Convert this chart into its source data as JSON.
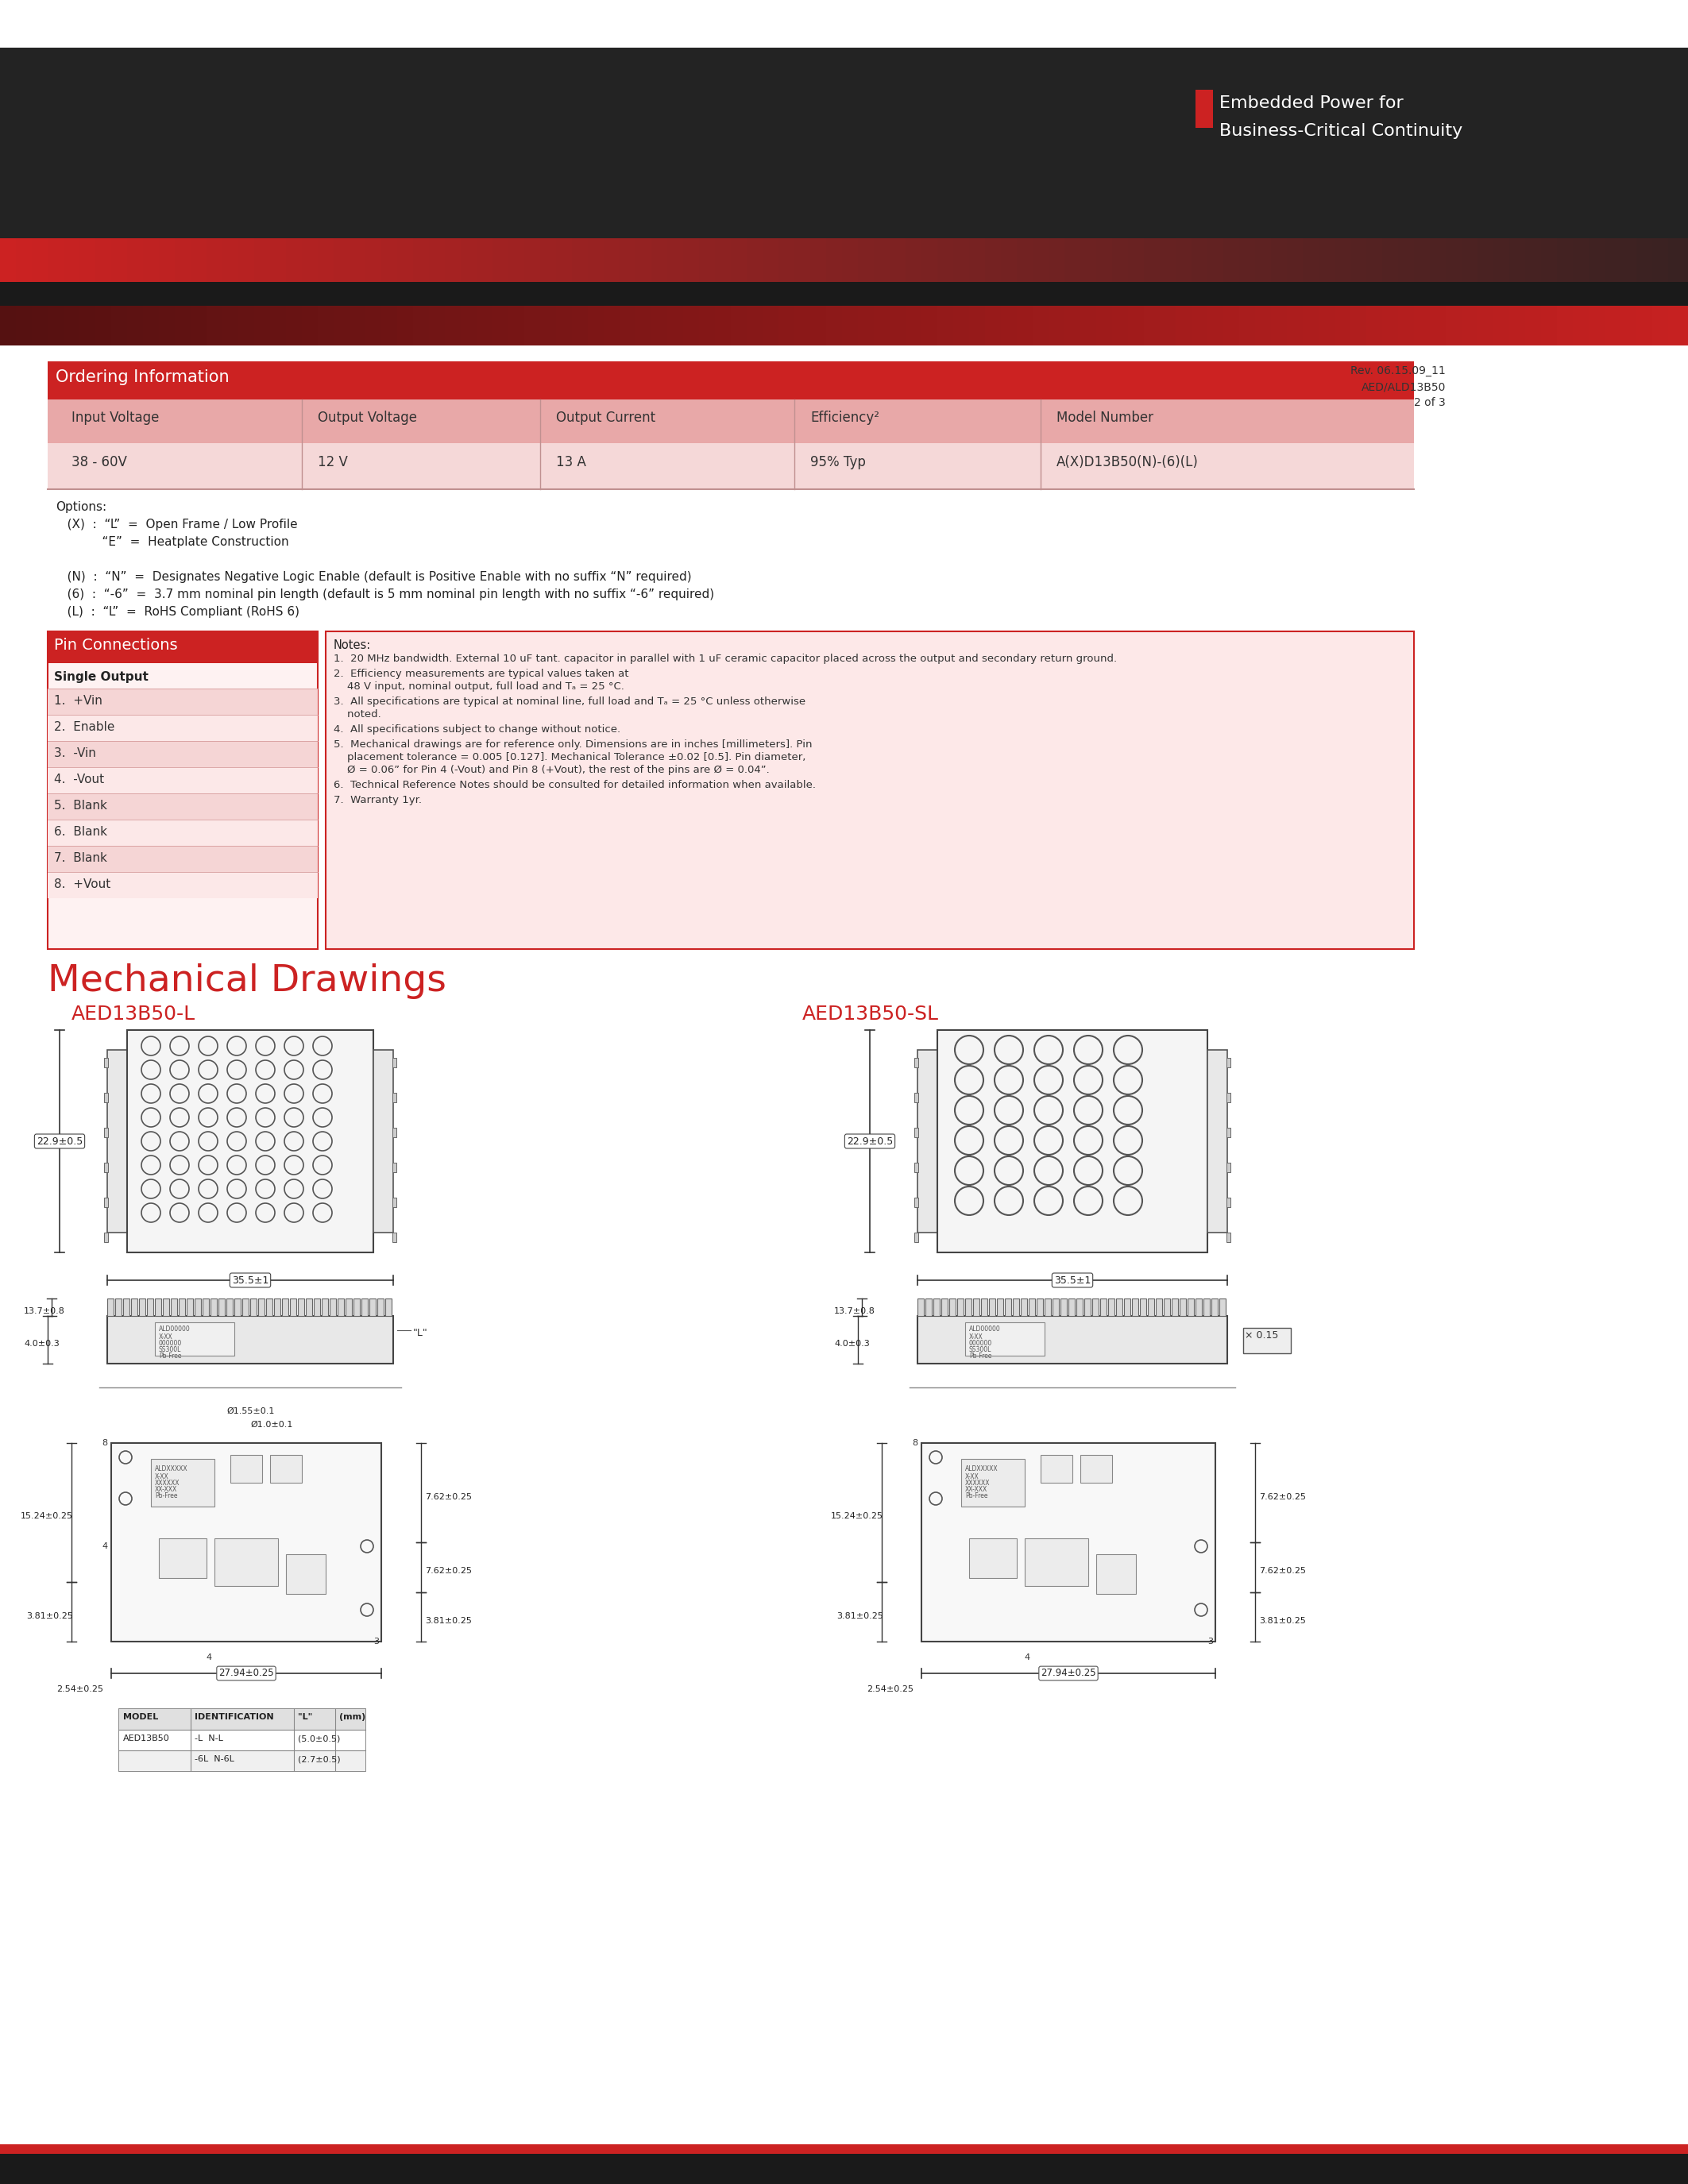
{
  "page_width": 21.25,
  "page_height": 27.5,
  "bg_color": "#ffffff",
  "header_dark": "#222222",
  "header_red": "#cc2222",
  "brand_text_line1": "Embedded Power for",
  "brand_text_line2": "Business-Critical Continuity",
  "rev_line1": "Rev. 06.15.09_11",
  "rev_line2": "AED/ALD13B50",
  "rev_line3": "2 of 3",
  "ordering_header": "Ordering Information",
  "ordering_cols": [
    "Input Voltage",
    "Output Voltage",
    "Output Current",
    "Efficiency²",
    "Model Number"
  ],
  "ordering_vals": [
    "38 - 60V",
    "12 V",
    "13 A",
    "95% Typ",
    "A(X)D13B50(N)-(6)(L)"
  ],
  "pin_header": "Pin Connections",
  "pin_subheader": "Single Output",
  "pin_list": [
    "1.  +Vin",
    "2.  Enable",
    "3.  -Vin",
    "4.  -Vout",
    "5.  Blank",
    "6.  Blank",
    "7.  Blank",
    "8.  +Vout"
  ],
  "notes_list": [
    "20 MHz bandwidth. External 10 uF tant. capacitor in parallel with 1 uF ceramic capacitor placed across the output and secondary return ground.",
    "Efficiency measurements are typical values taken at\n    48 V input, nominal output, full load and Tₐ = 25 °C.",
    "All specifications are typical at nominal line, full load and Tₐ = 25 °C unless otherwise\n    noted.",
    "All specifications subject to change without notice.",
    "Mechanical drawings are for reference only. Dimensions are in inches [millimeters]. Pin\n    placement tolerance = 0.005 [0.127]. Mechanical Tolerance ±0.02 [0.5]. Pin diameter,\n    Ø = 0.06” for Pin 4 (-Vout) and Pin 8 (+Vout), the rest of the pins are Ø = 0.04”.",
    "Technical Reference Notes should be consulted for detailed information when available.",
    "Warranty 1yr."
  ],
  "mech_title": "Mechanical Drawings",
  "mech_title_color": "#cc2222",
  "model1_label": "AED13B50-L",
  "model2_label": "AED13B50-SL",
  "model_label_color": "#cc2222",
  "options_lines": [
    "Options:",
    "   (X)  :  “L”  =  Open Frame / Low Profile",
    "            “E”  =  Heatplate Construction",
    "",
    "   (N)  :  “N”  =  Designates Negative Logic Enable (default is Positive Enable with no suffix “N” required)",
    "   (6)  :  “-6”  =  3.7 mm nominal pin length (default is 5 mm nominal pin length with no suffix “-6” required)",
    "   (L)  :  “L”  =  RoHS Compliant (RoHS 6)"
  ]
}
